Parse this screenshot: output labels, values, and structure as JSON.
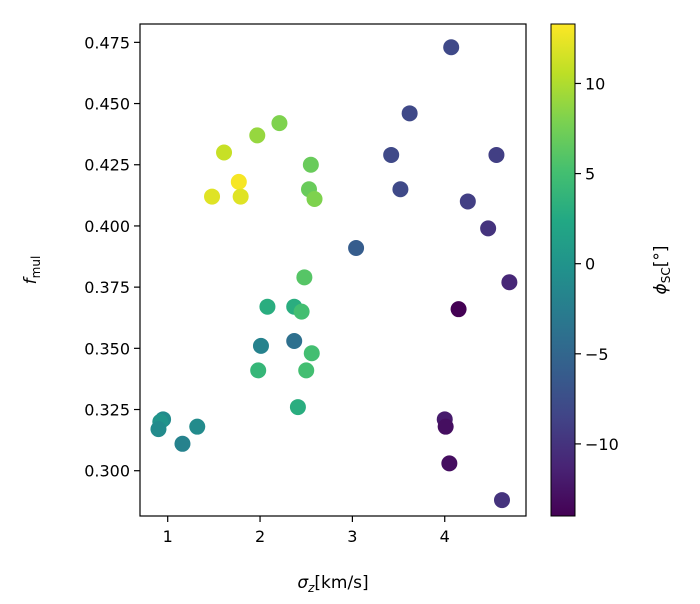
{
  "chart_data": {
    "type": "scatter",
    "xlabel_symbol": "σ",
    "xlabel_sub": "z",
    "xlabel_unit": "[km/s]",
    "ylabel_symbol": "f",
    "ylabel_sub": "mul",
    "colorbar_label_symbol": "ϕ",
    "colorbar_label_sub": "SC",
    "colorbar_label_unit": "[°]",
    "xlim": [
      0.7,
      4.88
    ],
    "ylim": [
      0.2815,
      0.4825
    ],
    "xticks": [
      1,
      2,
      3,
      4
    ],
    "yticks": [
      0.3,
      0.325,
      0.35,
      0.375,
      0.4,
      0.425,
      0.45,
      0.475
    ],
    "ytick_labels": [
      "0.300",
      "0.325",
      "0.350",
      "0.375",
      "0.400",
      "0.425",
      "0.450",
      "0.475"
    ],
    "colormap": "viridis",
    "clim": [
      -14,
      13.3
    ],
    "cticks": [
      -10,
      -5,
      0,
      5,
      10
    ],
    "ctick_labels": [
      "−10",
      "−5",
      "0",
      "5",
      "10"
    ],
    "points": [
      {
        "x": 4.07,
        "y": 0.473,
        "c": -8
      },
      {
        "x": 3.62,
        "y": 0.446,
        "c": -8
      },
      {
        "x": 3.42,
        "y": 0.429,
        "c": -8
      },
      {
        "x": 3.52,
        "y": 0.415,
        "c": -8
      },
      {
        "x": 4.56,
        "y": 0.429,
        "c": -9
      },
      {
        "x": 4.25,
        "y": 0.41,
        "c": -9
      },
      {
        "x": 4.47,
        "y": 0.399,
        "c": -10
      },
      {
        "x": 4.7,
        "y": 0.377,
        "c": -11
      },
      {
        "x": 3.04,
        "y": 0.391,
        "c": -6
      },
      {
        "x": 4.15,
        "y": 0.366,
        "c": -14
      },
      {
        "x": 4.0,
        "y": 0.321,
        "c": -12
      },
      {
        "x": 4.01,
        "y": 0.318,
        "c": -13
      },
      {
        "x": 4.05,
        "y": 0.303,
        "c": -13
      },
      {
        "x": 4.62,
        "y": 0.288,
        "c": -10
      },
      {
        "x": 2.21,
        "y": 0.442,
        "c": 8
      },
      {
        "x": 1.97,
        "y": 0.437,
        "c": 9
      },
      {
        "x": 1.61,
        "y": 0.43,
        "c": 11
      },
      {
        "x": 2.55,
        "y": 0.425,
        "c": 7
      },
      {
        "x": 1.77,
        "y": 0.418,
        "c": 13
      },
      {
        "x": 2.53,
        "y": 0.415,
        "c": 7
      },
      {
        "x": 1.48,
        "y": 0.412,
        "c": 12
      },
      {
        "x": 1.79,
        "y": 0.412,
        "c": 12
      },
      {
        "x": 2.59,
        "y": 0.411,
        "c": 8
      },
      {
        "x": 2.48,
        "y": 0.379,
        "c": 6
      },
      {
        "x": 2.08,
        "y": 0.367,
        "c": 3
      },
      {
        "x": 2.37,
        "y": 0.367,
        "c": 3
      },
      {
        "x": 2.45,
        "y": 0.365,
        "c": 5
      },
      {
        "x": 2.37,
        "y": 0.353,
        "c": -4
      },
      {
        "x": 2.01,
        "y": 0.351,
        "c": -2
      },
      {
        "x": 2.56,
        "y": 0.348,
        "c": 5
      },
      {
        "x": 2.5,
        "y": 0.341,
        "c": 5
      },
      {
        "x": 1.98,
        "y": 0.341,
        "c": 4
      },
      {
        "x": 2.41,
        "y": 0.326,
        "c": 3
      },
      {
        "x": 0.95,
        "y": 0.321,
        "c": -1
      },
      {
        "x": 0.92,
        "y": 0.32,
        "c": 0
      },
      {
        "x": 0.9,
        "y": 0.317,
        "c": -1
      },
      {
        "x": 1.32,
        "y": 0.318,
        "c": -1
      },
      {
        "x": 1.16,
        "y": 0.311,
        "c": -2
      }
    ]
  }
}
